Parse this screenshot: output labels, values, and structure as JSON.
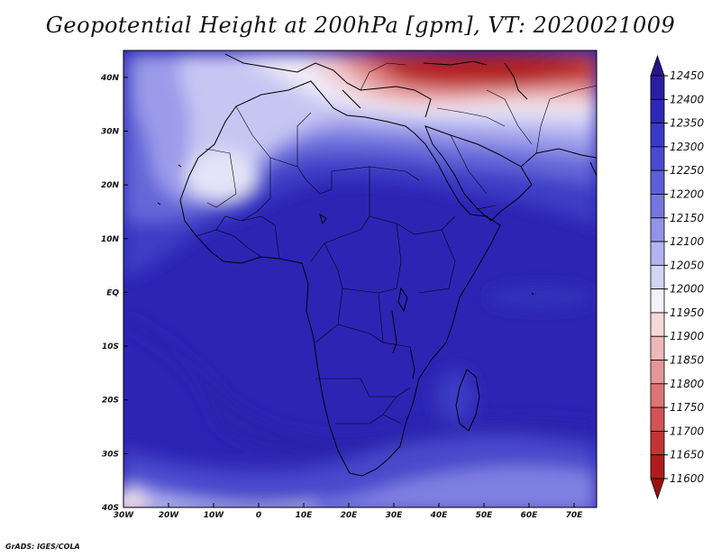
{
  "title": "Geopotential Height at 200hPa [gpm], VT: 2020021009",
  "footer": "GrADS: IGES/COLA",
  "map": {
    "lon_range": [
      -30,
      75
    ],
    "lat_range": [
      -40,
      45
    ],
    "lon_ticks": [
      {
        "value": -30,
        "label": "30W"
      },
      {
        "value": -20,
        "label": "20W"
      },
      {
        "value": -10,
        "label": "10W"
      },
      {
        "value": 0,
        "label": "0"
      },
      {
        "value": 10,
        "label": "10E"
      },
      {
        "value": 20,
        "label": "20E"
      },
      {
        "value": 30,
        "label": "30E"
      },
      {
        "value": 40,
        "label": "40E"
      },
      {
        "value": 50,
        "label": "50E"
      },
      {
        "value": 60,
        "label": "60E"
      },
      {
        "value": 70,
        "label": "70E"
      }
    ],
    "lat_ticks": [
      {
        "value": 40,
        "label": "40N"
      },
      {
        "value": 30,
        "label": "30N"
      },
      {
        "value": 20,
        "label": "20N"
      },
      {
        "value": 10,
        "label": "10N"
      },
      {
        "value": 0,
        "label": "EQ"
      },
      {
        "value": -10,
        "label": "10S"
      },
      {
        "value": -20,
        "label": "20S"
      },
      {
        "value": -30,
        "label": "30S"
      },
      {
        "value": -40,
        "label": "40S"
      }
    ]
  },
  "colorbar": {
    "levels": [
      12450,
      12400,
      12350,
      12300,
      12250,
      12200,
      12150,
      12100,
      12050,
      12000,
      11950,
      11900,
      11850,
      11800,
      11750,
      11700,
      11650,
      11600
    ],
    "colors": [
      "#28148c",
      "#2b1fa3",
      "#2d28b8",
      "#3a38c8",
      "#4a4ad0",
      "#5e5fd8",
      "#7676e0",
      "#9393e8",
      "#b3b3f0",
      "#d4d4f7",
      "#f2f0f8",
      "#f6d8d8",
      "#efb8b8",
      "#e69696",
      "#dd7474",
      "#d35252",
      "#c53434",
      "#b01c1c",
      "#9c1010"
    ]
  }
}
